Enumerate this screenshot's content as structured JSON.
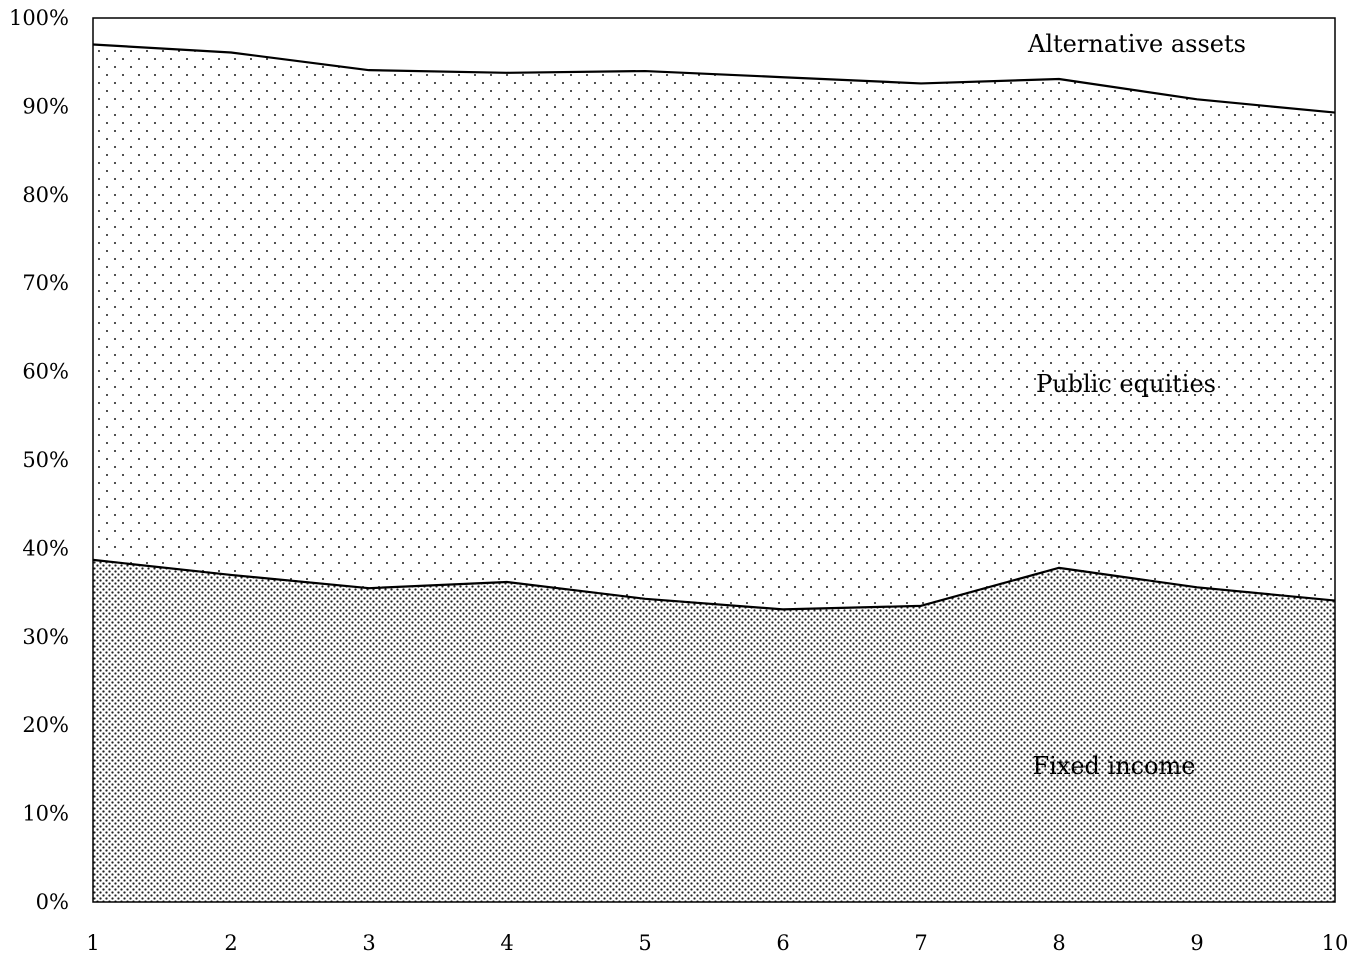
{
  "chart_data": {
    "type": "area",
    "stacked": true,
    "percent": true,
    "title": "",
    "xlabel": "",
    "ylabel": "",
    "x": [
      1,
      2,
      3,
      4,
      5,
      6,
      7,
      8,
      9,
      10
    ],
    "x_tick_labels": [
      "1",
      "2",
      "3",
      "4",
      "5",
      "6",
      "7",
      "8",
      "9",
      "10"
    ],
    "ylim": [
      0,
      100
    ],
    "y_ticks": [
      0,
      10,
      20,
      30,
      40,
      50,
      60,
      70,
      80,
      90,
      100
    ],
    "y_tick_labels": [
      "0%",
      "10%",
      "20%",
      "30%",
      "40%",
      "50%",
      "60%",
      "70%",
      "80%",
      "90%",
      "100%"
    ],
    "grid": false,
    "legend": "none (series labeled inside areas)",
    "series": [
      {
        "name": "Fixed income",
        "pattern": "dense-dots",
        "values": [
          38.7,
          37.0,
          35.5,
          36.2,
          34.3,
          33.1,
          33.5,
          37.8,
          35.6,
          34.1
        ]
      },
      {
        "name": "Public equities",
        "pattern": "sparse-dots",
        "values": [
          58.3,
          59.1,
          58.6,
          57.6,
          59.7,
          60.2,
          59.1,
          55.3,
          55.2,
          55.2
        ]
      },
      {
        "name": "Alternative assets",
        "pattern": "none",
        "values": [
          3.0,
          3.9,
          5.9,
          6.2,
          6.0,
          6.7,
          7.4,
          6.9,
          9.2,
          10.7
        ]
      }
    ],
    "colors": {
      "line": "#000000",
      "dots": "#222222",
      "background": "#ffffff"
    }
  }
}
